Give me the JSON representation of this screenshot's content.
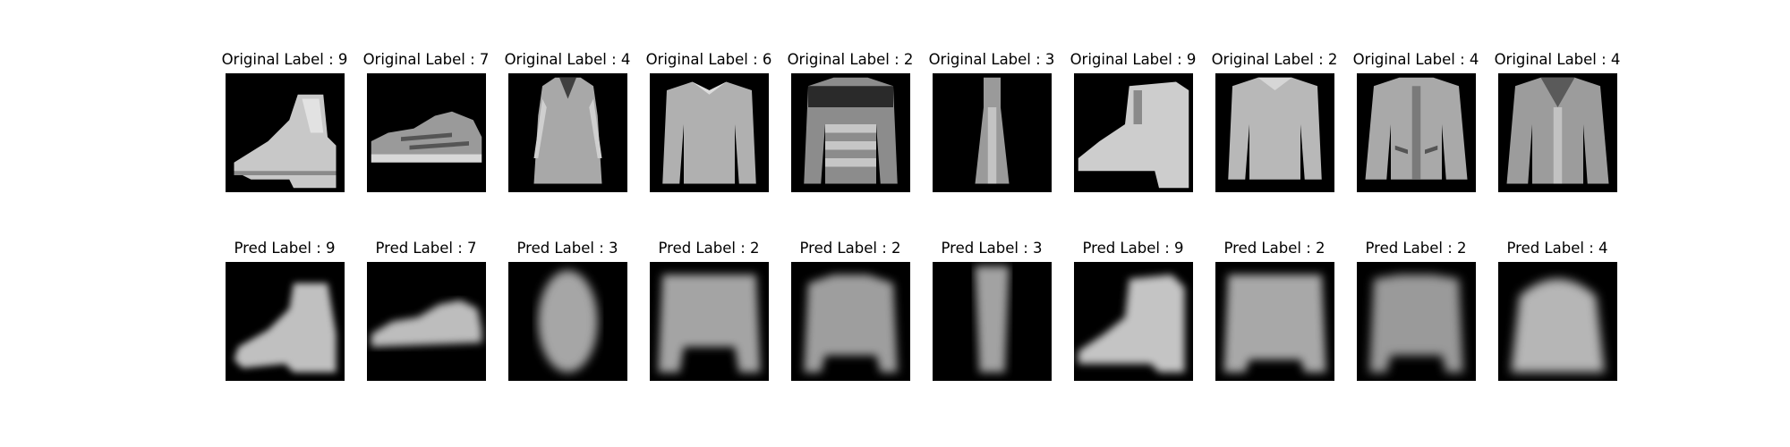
{
  "figure": {
    "rows": [
      {
        "name": "original",
        "titles": [
          "Original Label : 9",
          "Original Label : 7",
          "Original Label : 4",
          "Original Label : 6",
          "Original Label : 2",
          "Original Label : 3",
          "Original Label : 9",
          "Original Label : 2",
          "Original Label : 4",
          "Original Label : 4"
        ],
        "images": [
          "ankle-boot-icon",
          "sneaker-icon",
          "coat-icon",
          "shirt-icon",
          "pullover-icon",
          "dress-icon",
          "ankle-boot-icon",
          "pullover-icon",
          "coat-icon",
          "coat-icon"
        ]
      },
      {
        "name": "pred",
        "titles": [
          "Pred Label : 9",
          "Pred Label : 7",
          "Pred Label : 3",
          "Pred Label : 2",
          "Pred Label : 2",
          "Pred Label : 3",
          "Pred Label : 9",
          "Pred Label : 2",
          "Pred Label : 2",
          "Pred Label : 4"
        ],
        "images": [
          "blurry-ankle-boot-icon",
          "blurry-sneaker-icon",
          "blurry-dress-icon",
          "blurry-pullover-icon",
          "blurry-pullover-icon",
          "blurry-dress-icon",
          "blurry-ankle-boot-icon",
          "blurry-pullover-icon",
          "blurry-pullover-icon",
          "blurry-coat-icon"
        ]
      }
    ],
    "colors": {
      "background": "#000000",
      "figure": "#ffffff"
    }
  }
}
